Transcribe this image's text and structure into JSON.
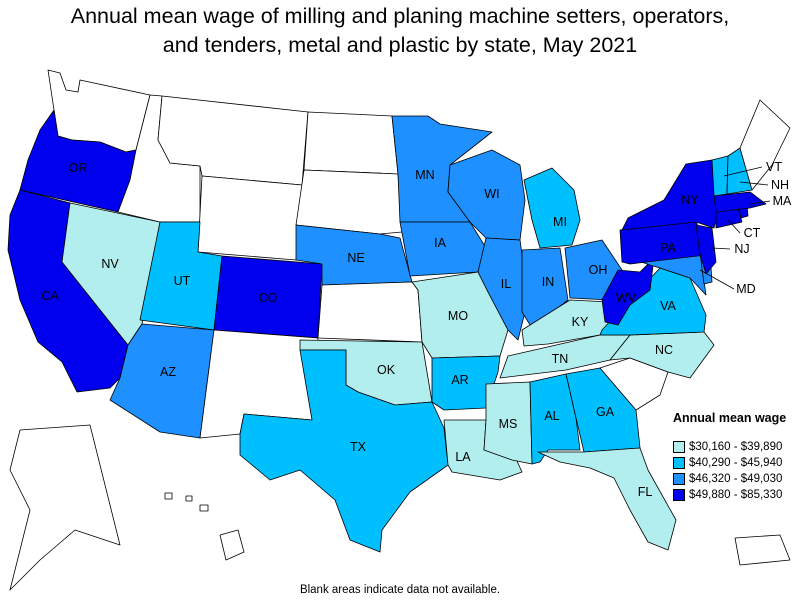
{
  "title_line1": "Annual mean wage of milling and planing machine setters, operators,",
  "title_line2": "and tenders, metal and plastic by state, May 2021",
  "legend": {
    "title": "Annual mean wage",
    "items": [
      {
        "label": "$30,160 - $39,890",
        "color": "#b3eeee"
      },
      {
        "label": "$40,290 - $45,940",
        "color": "#00bfff"
      },
      {
        "label": "$46,320 - $49,030",
        "color": "#1e90ff"
      },
      {
        "label": "$49,880 - $85,330",
        "color": "#0000ee"
      }
    ]
  },
  "footnote": "Blank areas indicate data not available.",
  "map": {
    "no_data_color": "#ffffff",
    "states": [
      {
        "abbr": "WA",
        "tier": null
      },
      {
        "abbr": "OR",
        "tier": 4
      },
      {
        "abbr": "CA",
        "tier": 4
      },
      {
        "abbr": "NV",
        "tier": 1
      },
      {
        "abbr": "ID",
        "tier": null
      },
      {
        "abbr": "MT",
        "tier": null
      },
      {
        "abbr": "WY",
        "tier": null
      },
      {
        "abbr": "UT",
        "tier": 2
      },
      {
        "abbr": "AZ",
        "tier": 3
      },
      {
        "abbr": "CO",
        "tier": 4
      },
      {
        "abbr": "NM",
        "tier": null
      },
      {
        "abbr": "ND",
        "tier": null
      },
      {
        "abbr": "SD",
        "tier": null
      },
      {
        "abbr": "NE",
        "tier": 3
      },
      {
        "abbr": "KS",
        "tier": null
      },
      {
        "abbr": "OK",
        "tier": 1
      },
      {
        "abbr": "TX",
        "tier": 2
      },
      {
        "abbr": "MN",
        "tier": 3
      },
      {
        "abbr": "IA",
        "tier": 3
      },
      {
        "abbr": "MO",
        "tier": 1
      },
      {
        "abbr": "AR",
        "tier": 2
      },
      {
        "abbr": "LA",
        "tier": 1
      },
      {
        "abbr": "WI",
        "tier": 3
      },
      {
        "abbr": "IL",
        "tier": 3
      },
      {
        "abbr": "MI",
        "tier": 2
      },
      {
        "abbr": "IN",
        "tier": 3
      },
      {
        "abbr": "OH",
        "tier": 3
      },
      {
        "abbr": "KY",
        "tier": 1
      },
      {
        "abbr": "TN",
        "tier": 1
      },
      {
        "abbr": "MS",
        "tier": 1
      },
      {
        "abbr": "AL",
        "tier": 2
      },
      {
        "abbr": "GA",
        "tier": 2
      },
      {
        "abbr": "FL",
        "tier": 1
      },
      {
        "abbr": "SC",
        "tier": null
      },
      {
        "abbr": "NC",
        "tier": 1
      },
      {
        "abbr": "VA",
        "tier": 2
      },
      {
        "abbr": "WV",
        "tier": 4
      },
      {
        "abbr": "MD",
        "tier": 3
      },
      {
        "abbr": "DE",
        "tier": 3
      },
      {
        "abbr": "PA",
        "tier": 4
      },
      {
        "abbr": "NJ",
        "tier": 4
      },
      {
        "abbr": "NY",
        "tier": 4
      },
      {
        "abbr": "CT",
        "tier": 4
      },
      {
        "abbr": "RI",
        "tier": 4
      },
      {
        "abbr": "MA",
        "tier": 4
      },
      {
        "abbr": "VT",
        "tier": 2
      },
      {
        "abbr": "NH",
        "tier": 2
      },
      {
        "abbr": "ME",
        "tier": null
      },
      {
        "abbr": "AK",
        "tier": null
      },
      {
        "abbr": "HI",
        "tier": null
      },
      {
        "abbr": "PR",
        "tier": null
      }
    ]
  }
}
